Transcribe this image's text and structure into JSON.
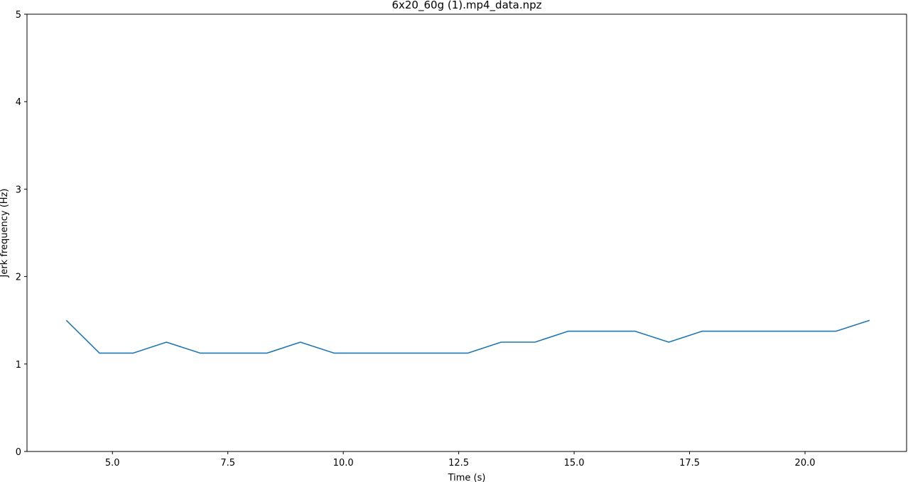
{
  "chart_data": {
    "type": "line",
    "title": "6x20_60g (1).mp4_data.npz",
    "xlabel": "Time (s)",
    "ylabel": "Jerk frequency (Hz)",
    "xlim": [
      3.15,
      22.2
    ],
    "ylim": [
      0,
      5
    ],
    "xticks": [
      5.0,
      7.5,
      10.0,
      12.5,
      15.0,
      17.5,
      20.0
    ],
    "xtick_labels": [
      "5.0",
      "7.5",
      "10.0",
      "12.5",
      "15.0",
      "17.5",
      "20.0"
    ],
    "yticks": [
      0,
      1,
      2,
      3,
      4,
      5
    ],
    "ytick_labels": [
      "0",
      "1",
      "2",
      "3",
      "4",
      "5"
    ],
    "grid": false,
    "series": [
      {
        "color": "#1f77b4",
        "x": [
          4.0,
          4.72,
          5.45,
          6.17,
          6.9,
          7.62,
          8.35,
          9.07,
          9.8,
          10.52,
          11.25,
          11.97,
          12.7,
          13.42,
          14.15,
          14.87,
          15.6,
          16.32,
          17.05,
          17.77,
          18.5,
          19.22,
          19.95,
          20.67,
          21.4
        ],
        "y": [
          1.5,
          1.125,
          1.125,
          1.25,
          1.125,
          1.125,
          1.125,
          1.25,
          1.125,
          1.125,
          1.125,
          1.125,
          1.125,
          1.25,
          1.25,
          1.375,
          1.375,
          1.375,
          1.25,
          1.375,
          1.375,
          1.375,
          1.375,
          1.375,
          1.5
        ]
      }
    ]
  }
}
